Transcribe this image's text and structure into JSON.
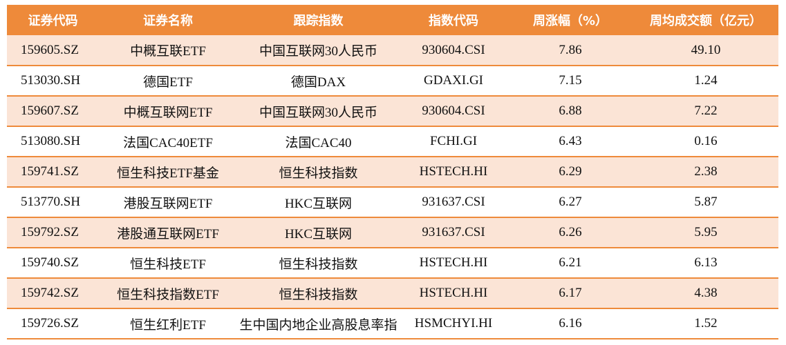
{
  "headers": [
    "证券代码",
    "证券名称",
    "跟踪指数",
    "指数代码",
    "周涨幅（%）",
    "周均成交额（亿元）"
  ],
  "rows": [
    {
      "code": "159605.SZ",
      "name": "中概互联ETF",
      "index": "中国互联网30人民币",
      "index_code": "930604.CSI",
      "change": "7.86",
      "turnover": "49.10"
    },
    {
      "code": "513030.SH",
      "name": "德国ETF",
      "index": "德国DAX",
      "index_code": "GDAXI.GI",
      "change": "7.15",
      "turnover": "1.24"
    },
    {
      "code": "159607.SZ",
      "name": "中概互联网ETF",
      "index": "中国互联网30人民币",
      "index_code": "930604.CSI",
      "change": "6.88",
      "turnover": "7.22"
    },
    {
      "code": "513080.SH",
      "name": "法国CAC40ETF",
      "index": "法国CAC40",
      "index_code": "FCHI.GI",
      "change": "6.43",
      "turnover": "0.16"
    },
    {
      "code": "159741.SZ",
      "name": "恒生科技ETF基金",
      "index": "恒生科技指数",
      "index_code": "HSTECH.HI",
      "change": "6.29",
      "turnover": "2.38"
    },
    {
      "code": "513770.SH",
      "name": "港股互联网ETF",
      "index": "HKC互联网",
      "index_code": "931637.CSI",
      "change": "6.27",
      "turnover": "5.87"
    },
    {
      "code": "159792.SZ",
      "name": "港股通互联网ETF",
      "index": "HKC互联网",
      "index_code": "931637.CSI",
      "change": "6.26",
      "turnover": "5.95"
    },
    {
      "code": "159740.SZ",
      "name": "恒生科技ETF",
      "index": "恒生科技指数",
      "index_code": "HSTECH.HI",
      "change": "6.21",
      "turnover": "6.13"
    },
    {
      "code": "159742.SZ",
      "name": "恒生科技指数ETF",
      "index": "恒生科技指数",
      "index_code": "HSTECH.HI",
      "change": "6.17",
      "turnover": "4.38"
    },
    {
      "code": "159726.SZ",
      "name": "恒生红利ETF",
      "index": "生中国内地企业高股息率指",
      "index_code": "HSMCHYI.HI",
      "change": "6.16",
      "turnover": "1.52"
    }
  ],
  "colors": {
    "header_bg": "#ee8a3a",
    "stripe_bg": "#fbe4d6",
    "header_text": "#ffffff"
  }
}
